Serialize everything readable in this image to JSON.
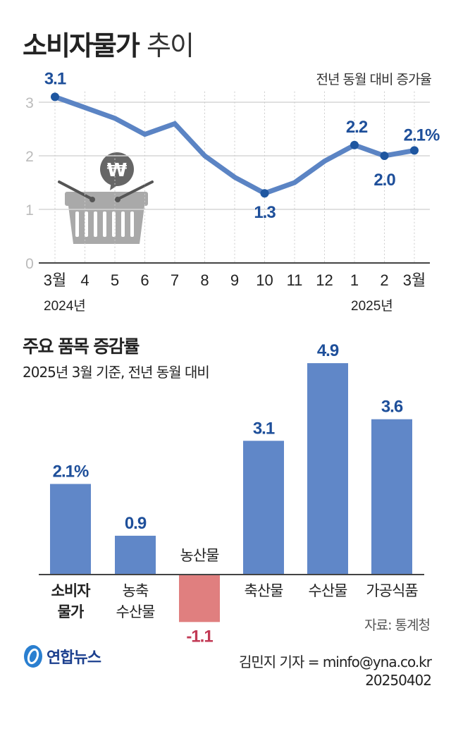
{
  "header": {
    "title_bold": "소비자물가",
    "title_light": "추이"
  },
  "chart_data": [
    {
      "type": "line",
      "unit_label": "전년 동월 대비 증가율",
      "categories": [
        "3월",
        "4",
        "5",
        "6",
        "7",
        "8",
        "9",
        "10",
        "11",
        "12",
        "1",
        "2",
        "3월"
      ],
      "year_labels": [
        "2024년",
        "2025년"
      ],
      "values": [
        3.1,
        2.9,
        2.7,
        2.4,
        2.6,
        2.0,
        1.6,
        1.3,
        1.5,
        1.9,
        2.2,
        2.0,
        2.1
      ],
      "data_labels": {
        "0": "3.1",
        "7": "1.3",
        "10": "2.2",
        "11": "2.0",
        "12": "2.1%"
      },
      "yticks": [
        "0",
        "1",
        "2",
        "3"
      ],
      "ylim": [
        0,
        3.3
      ],
      "grid": true,
      "color": "#5b84c4",
      "point_color": "#1e56a0",
      "label_color": "#1e4f9a"
    },
    {
      "type": "bar",
      "title": "주요 품목 증감률",
      "subtitle": "2025년 3월 기준, 전년 동월 대비",
      "categories": [
        [
          "소비자",
          "물가"
        ],
        [
          "농축",
          "수산물"
        ],
        [
          "농산물"
        ],
        [
          "축산물"
        ],
        [
          "수산물"
        ],
        [
          "가공식품"
        ]
      ],
      "values": [
        2.1,
        0.9,
        -1.1,
        3.1,
        4.9,
        3.6
      ],
      "data_labels": [
        "2.1%",
        "0.9",
        "-1.1",
        "3.1",
        "4.9",
        "3.6"
      ],
      "positive_color": "#6087c8",
      "negative_color": "#e07f7f",
      "positive_label_color": "#1e4f9a",
      "negative_label_color": "#c23a55"
    }
  ],
  "footer": {
    "source": "자료: 통계청",
    "logo": "연합뉴스",
    "credit": "김민지 기자 = minfo@yna.co.kr",
    "date": "20250402"
  }
}
